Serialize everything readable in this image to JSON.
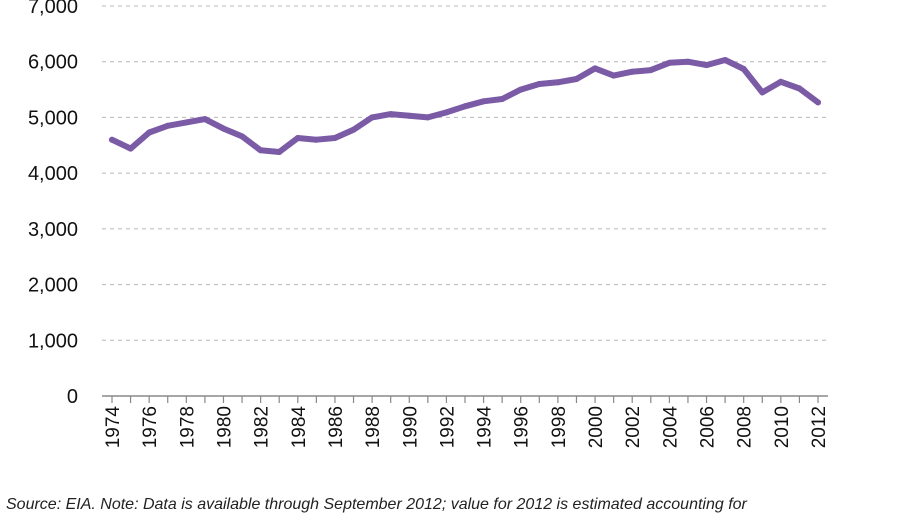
{
  "chart_data": {
    "type": "line",
    "title": "",
    "xlabel": "",
    "ylabel": "",
    "ylim": [
      0,
      7000
    ],
    "yticks": [
      0,
      1000,
      2000,
      3000,
      4000,
      5000,
      6000,
      7000
    ],
    "ytick_labels": [
      "0",
      "1,000",
      "2,000",
      "3,000",
      "4,000",
      "5,000",
      "6,000",
      "7,000"
    ],
    "x": [
      1974,
      1975,
      1976,
      1977,
      1978,
      1979,
      1980,
      1981,
      1982,
      1983,
      1984,
      1985,
      1986,
      1987,
      1988,
      1989,
      1990,
      1991,
      1992,
      1993,
      1994,
      1995,
      1996,
      1997,
      1998,
      1999,
      2000,
      2001,
      2002,
      2003,
      2004,
      2005,
      2006,
      2007,
      2008,
      2009,
      2010,
      2011,
      2012
    ],
    "xtick_labels": [
      "1974",
      "1976",
      "1978",
      "1980",
      "1982",
      "1984",
      "1986",
      "1988",
      "1990",
      "1992",
      "1994",
      "1996",
      "1998",
      "2000",
      "2002",
      "2004",
      "2006",
      "2008",
      "2010",
      "2012"
    ],
    "grid": true,
    "series": [
      {
        "values": [
          4600,
          4440,
          4730,
          4850,
          4910,
          4970,
          4800,
          4660,
          4410,
          4380,
          4630,
          4600,
          4630,
          4780,
          5000,
          5060,
          5030,
          5000,
          5090,
          5200,
          5290,
          5330,
          5500,
          5600,
          5630,
          5690,
          5880,
          5750,
          5820,
          5850,
          5980,
          6000,
          5940,
          6030,
          5870,
          5450,
          5640,
          5520,
          5270
        ],
        "color": "#7b5ba6"
      }
    ]
  },
  "source_note": "Source: EIA. Note: Data is available through September 2012; value for 2012 is estimated accounting for"
}
